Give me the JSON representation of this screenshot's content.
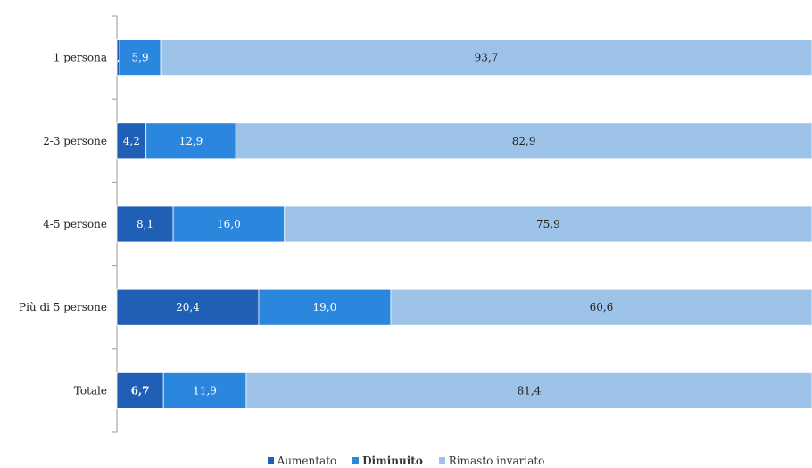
{
  "chart_data": {
    "type": "bar",
    "orientation": "horizontal",
    "stacked": true,
    "categories": [
      "1 persona",
      "2-3 persone",
      "4-5 persone",
      "Più di 5 persone",
      "Totale"
    ],
    "series": [
      {
        "name": "Aumentato",
        "color": "#1f5fb5",
        "values": [
          0.4,
          4.2,
          8.1,
          20.4,
          6.7
        ],
        "labels": [
          "0,4",
          "4,2",
          "8,1",
          "20,4",
          "6,7"
        ]
      },
      {
        "name": "Diminuito",
        "color": "#2b86dd",
        "values": [
          5.9,
          12.9,
          16.0,
          19.0,
          11.9
        ],
        "labels": [
          "5,9",
          "12,9",
          "16,0",
          "19,0",
          "11,9"
        ]
      },
      {
        "name": "Rimasto invariato",
        "color": "#9dc3e8",
        "values": [
          93.7,
          82.9,
          75.9,
          60.6,
          81.4
        ],
        "labels": [
          "93,7",
          "82,9",
          "75,9",
          "60,6",
          "81,4"
        ]
      }
    ],
    "xlim": [
      0,
      100
    ],
    "grid": false,
    "legend_position": "bottom"
  }
}
